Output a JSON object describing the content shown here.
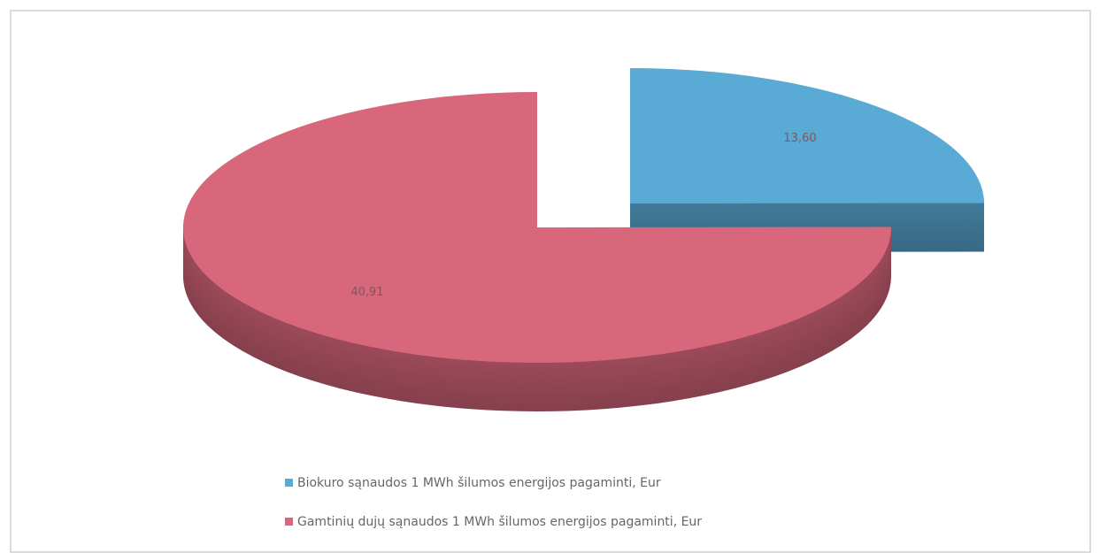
{
  "chart_data": {
    "type": "pie",
    "categories": [
      "Biokuro sąnaudos 1 MWh šilumos energijos pagaminti, Eur",
      "Gamtinių dujų sąnaudos 1 MWh šilumos energijos pagaminti, Eur"
    ],
    "values": [
      13.6,
      40.91
    ],
    "value_labels": [
      "13,60",
      "40,91"
    ],
    "colors": [
      "#5aaad6",
      "#d8677c"
    ],
    "legend": "bottom"
  }
}
